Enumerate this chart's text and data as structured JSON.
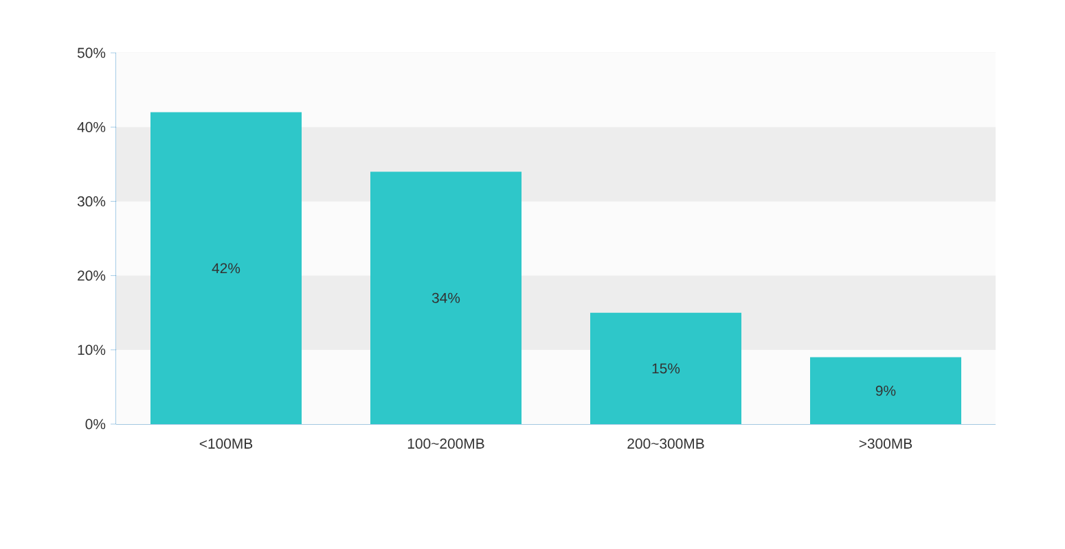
{
  "chart_data": {
    "type": "bar",
    "categories": [
      "<100MB",
      "100~200MB",
      "200~300MB",
      ">300MB"
    ],
    "values": [
      42,
      34,
      15,
      9
    ],
    "value_labels": [
      "42%",
      "34%",
      "15%",
      "9%"
    ],
    "color": "#2ec7c9",
    "ylim": [
      0,
      50
    ],
    "yticks": [
      {
        "value": 0,
        "label": "0%"
      },
      {
        "value": 10,
        "label": "10%"
      },
      {
        "value": 20,
        "label": "20%"
      },
      {
        "value": 30,
        "label": "30%"
      },
      {
        "value": 40,
        "label": "40%"
      },
      {
        "value": 50,
        "label": "50%"
      }
    ],
    "grid": "y"
  }
}
